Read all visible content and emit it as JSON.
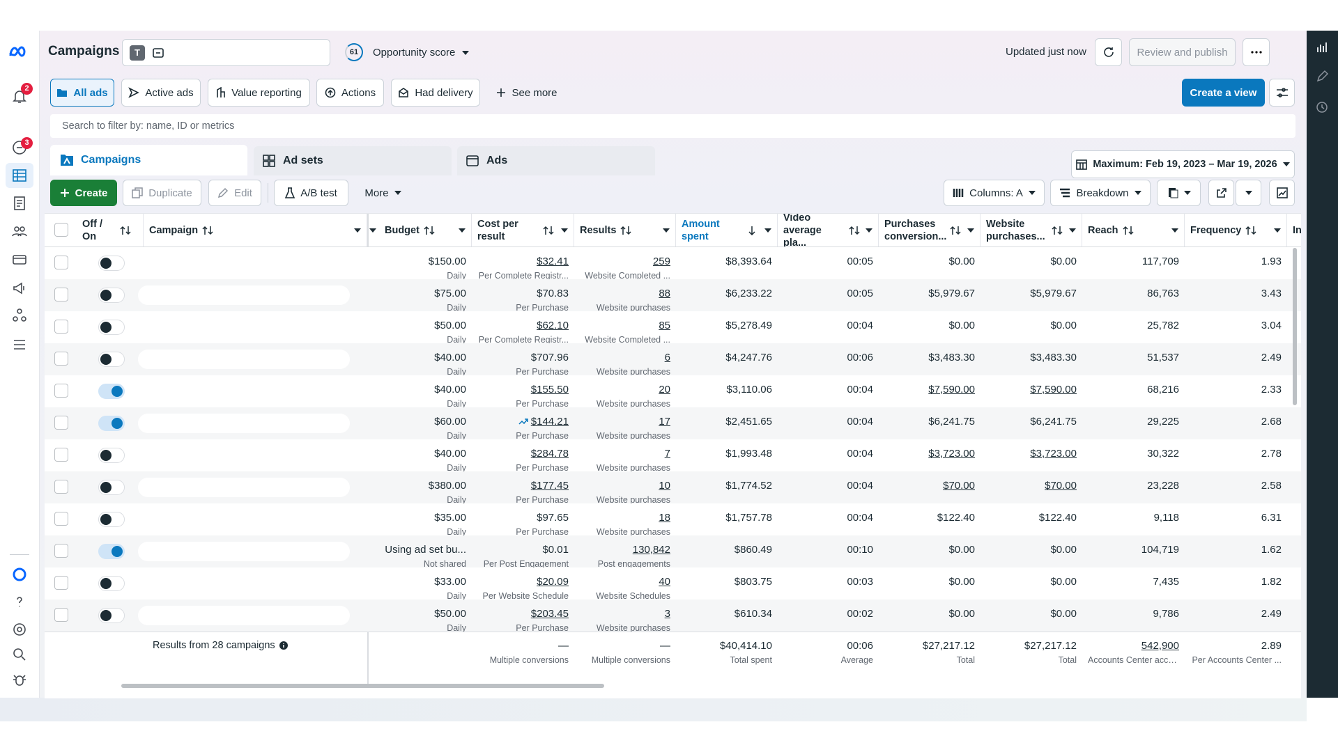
{
  "header": {
    "title": "Campaigns",
    "badge": "T",
    "opportunity_score": "61",
    "opportunity_label": "Opportunity score",
    "updated": "Updated just now",
    "review_publish": "Review and publish"
  },
  "nav_badges": {
    "alerts": "2",
    "messages": "3"
  },
  "filters": [
    "All ads",
    "Active ads",
    "Value reporting",
    "Actions",
    "Had delivery",
    "See more"
  ],
  "create_view": "Create a view",
  "search_placeholder": "Search to filter by: name, ID or metrics",
  "tabs": [
    "Campaigns",
    "Ad sets",
    "Ads"
  ],
  "date_range": "Maximum: Feb 19, 2023 – Mar 19, 2026",
  "toolbar": {
    "create": "Create",
    "duplicate": "Duplicate",
    "edit": "Edit",
    "ab_test": "A/B test",
    "more": "More",
    "columns": "Columns: A",
    "breakdown": "Breakdown"
  },
  "table": {
    "columns": [
      "Off / On",
      "Campaign",
      "Budget",
      "Cost per result",
      "Results",
      "Amount spent",
      "Video average pla...",
      "Purchases conversion...",
      "Website purchases...",
      "Reach",
      "Frequency",
      "In"
    ],
    "sorted_column": 5,
    "rows": [
      {
        "on": false,
        "budget": [
          "$150.00",
          "Daily"
        ],
        "cost": [
          "$32.41",
          "Per Complete Registr..."
        ],
        "results": [
          "259",
          "Website Completed ..."
        ],
        "amount": "$8,393.64",
        "video": "00:05",
        "purchases": "$0.00",
        "website": "$0.00",
        "reach": "117,709",
        "frequency": "1.93",
        "links": [
          "cost",
          "results"
        ]
      },
      {
        "on": false,
        "budget": [
          "$75.00",
          "Daily"
        ],
        "cost": [
          "$70.83",
          "Per Purchase"
        ],
        "results": [
          "88",
          "Website purchases"
        ],
        "amount": "$6,233.22",
        "video": "00:05",
        "purchases": "$5,979.67",
        "website": "$5,979.67",
        "reach": "86,763",
        "frequency": "3.43",
        "links": [
          "results"
        ]
      },
      {
        "on": false,
        "budget": [
          "$50.00",
          "Daily"
        ],
        "cost": [
          "$62.10",
          "Per Complete Registr..."
        ],
        "results": [
          "85",
          "Website Completed ..."
        ],
        "amount": "$5,278.49",
        "video": "00:04",
        "purchases": "$0.00",
        "website": "$0.00",
        "reach": "25,782",
        "frequency": "3.04",
        "links": [
          "cost",
          "results"
        ]
      },
      {
        "on": false,
        "budget": [
          "$40.00",
          "Daily"
        ],
        "cost": [
          "$707.96",
          "Per Purchase"
        ],
        "results": [
          "6",
          "Website purchases"
        ],
        "amount": "$4,247.76",
        "video": "00:06",
        "purchases": "$3,483.30",
        "website": "$3,483.30",
        "reach": "51,537",
        "frequency": "2.49",
        "links": [
          "results"
        ]
      },
      {
        "on": true,
        "budget": [
          "$40.00",
          "Daily"
        ],
        "cost": [
          "$155.50",
          "Per Purchase"
        ],
        "results": [
          "20",
          "Website purchases"
        ],
        "amount": "$3,110.06",
        "video": "00:04",
        "purchases": "$7,590.00",
        "website": "$7,590.00",
        "reach": "68,216",
        "frequency": "2.33",
        "links": [
          "cost",
          "results",
          "purchases",
          "website"
        ]
      },
      {
        "on": true,
        "budget": [
          "$60.00",
          "Daily"
        ],
        "cost": [
          "$144.21",
          "Per Purchase"
        ],
        "results": [
          "17",
          "Website purchases"
        ],
        "amount": "$2,451.65",
        "video": "00:04",
        "purchases": "$6,241.75",
        "website": "$6,241.75",
        "reach": "29,225",
        "frequency": "2.68",
        "links": [
          "cost",
          "results"
        ],
        "trending": true
      },
      {
        "on": false,
        "budget": [
          "$40.00",
          "Daily"
        ],
        "cost": [
          "$284.78",
          "Per Purchase"
        ],
        "results": [
          "7",
          "Website purchases"
        ],
        "amount": "$1,993.48",
        "video": "00:04",
        "purchases": "$3,723.00",
        "website": "$3,723.00",
        "reach": "30,322",
        "frequency": "2.78",
        "links": [
          "cost",
          "results",
          "purchases",
          "website"
        ]
      },
      {
        "on": false,
        "budget": [
          "$380.00",
          "Daily"
        ],
        "cost": [
          "$177.45",
          "Per Purchase"
        ],
        "results": [
          "10",
          "Website purchases"
        ],
        "amount": "$1,774.52",
        "video": "00:04",
        "purchases": "$70.00",
        "website": "$70.00",
        "reach": "23,228",
        "frequency": "2.58",
        "links": [
          "cost",
          "results",
          "purchases",
          "website"
        ]
      },
      {
        "on": false,
        "budget": [
          "$35.00",
          "Daily"
        ],
        "cost": [
          "$97.65",
          "Per Purchase"
        ],
        "results": [
          "18",
          "Website purchases"
        ],
        "amount": "$1,757.78",
        "video": "00:04",
        "purchases": "$122.40",
        "website": "$122.40",
        "reach": "9,118",
        "frequency": "6.31",
        "links": [
          "results"
        ]
      },
      {
        "on": true,
        "budget": [
          "Using ad set bu...",
          "Not shared"
        ],
        "cost": [
          "$0.01",
          "Per Post Engagement"
        ],
        "results": [
          "130,842",
          "Post engagements"
        ],
        "amount": "$860.49",
        "video": "00:10",
        "purchases": "$0.00",
        "website": "$0.00",
        "reach": "104,719",
        "frequency": "1.62",
        "links": [
          "results"
        ]
      },
      {
        "on": false,
        "budget": [
          "$33.00",
          "Daily"
        ],
        "cost": [
          "$20.09",
          "Per Website Schedule"
        ],
        "results": [
          "40",
          "Website Schedules"
        ],
        "amount": "$803.75",
        "video": "00:03",
        "purchases": "$0.00",
        "website": "$0.00",
        "reach": "7,435",
        "frequency": "1.82",
        "links": [
          "cost",
          "results"
        ]
      },
      {
        "on": false,
        "budget": [
          "$50.00",
          "Daily"
        ],
        "cost": [
          "$203.45",
          "Per Purchase"
        ],
        "results": [
          "3",
          "Website purchases"
        ],
        "amount": "$610.34",
        "video": "00:02",
        "purchases": "$0.00",
        "website": "$0.00",
        "reach": "9,786",
        "frequency": "2.49",
        "links": [
          "cost",
          "results"
        ]
      }
    ],
    "footer": {
      "summary": "Results from 28 campaigns",
      "cost": [
        "—",
        "Multiple conversions"
      ],
      "results": [
        "—",
        "Multiple conversions"
      ],
      "amount": [
        "$40,414.10",
        "Total spent"
      ],
      "video": [
        "00:06",
        "Average"
      ],
      "purchases": [
        "$27,217.12",
        "Total"
      ],
      "website": [
        "$27,217.12",
        "Total"
      ],
      "reach": [
        "542,900",
        "Accounts Center acco..."
      ],
      "frequency": [
        "2.89",
        "Per Accounts Center ..."
      ],
      "links": [
        "reach"
      ]
    }
  }
}
